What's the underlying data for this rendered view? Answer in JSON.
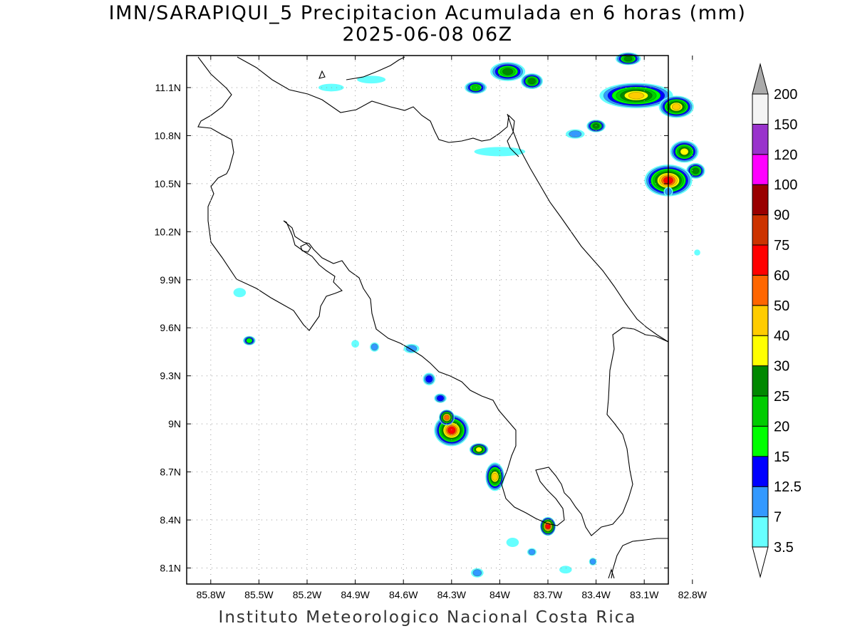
{
  "header": {
    "title_line1": "IMN/SARAPIQUI_5 Precipitacion Acumulada en 6 horas (mm)",
    "title_line2": "2025-06-08 06Z"
  },
  "footer": {
    "credit": "Instituto Meteorologico Nacional Costa Rica"
  },
  "map": {
    "lon_range": [
      -85.95,
      -82.95
    ],
    "lat_range": [
      8.0,
      11.3
    ],
    "x_ticks": [
      {
        "value": -85.8,
        "label": "85.8W"
      },
      {
        "value": -85.5,
        "label": "85.5W"
      },
      {
        "value": -85.2,
        "label": "85.2W"
      },
      {
        "value": -84.9,
        "label": "84.9W"
      },
      {
        "value": -84.6,
        "label": "84.6W"
      },
      {
        "value": -84.3,
        "label": "84.3W"
      },
      {
        "value": -84.0,
        "label": "84W"
      },
      {
        "value": -83.7,
        "label": "83.7W"
      },
      {
        "value": -83.4,
        "label": "83.4W"
      },
      {
        "value": -83.1,
        "label": "83.1W"
      },
      {
        "value": -82.8,
        "label": "82.8W"
      }
    ],
    "y_ticks": [
      {
        "value": 11.1,
        "label": "11.1N"
      },
      {
        "value": 10.8,
        "label": "10.8N"
      },
      {
        "value": 10.5,
        "label": "10.5N"
      },
      {
        "value": 10.2,
        "label": "10.2N"
      },
      {
        "value": 9.9,
        "label": "9.9N"
      },
      {
        "value": 9.6,
        "label": "9.6N"
      },
      {
        "value": 9.3,
        "label": "9.3N"
      },
      {
        "value": 9.0,
        "label": "9N"
      },
      {
        "value": 8.7,
        "label": "8.7N"
      },
      {
        "value": 8.4,
        "label": "8.4N"
      },
      {
        "value": 8.1,
        "label": "8.1N"
      }
    ],
    "grid": "dotted"
  },
  "legend": {
    "labels": [
      "200",
      "150",
      "120",
      "100",
      "90",
      "75",
      "60",
      "50",
      "40",
      "30",
      "25",
      "20",
      "15",
      "12.5",
      "7",
      "3.5"
    ],
    "colors_bottom_to_top": [
      "#66ffff",
      "#3399ff",
      "#0000ff",
      "#00ff00",
      "#00cc00",
      "#008800",
      "#ffff00",
      "#ffcc00",
      "#ff6600",
      "#ff0000",
      "#cc3300",
      "#990000",
      "#ff00ff",
      "#9933cc",
      "#f4f4f4"
    ],
    "top_arrow_color": "#aaaaaa",
    "bottom_arrow_color": "#ffffff"
  },
  "precip_cells": [
    {
      "lon": -83.15,
      "lat": 11.05,
      "rx": 0.22,
      "ry": 0.07,
      "max": 45
    },
    {
      "lon": -82.9,
      "lat": 10.98,
      "rx": 0.1,
      "ry": 0.06,
      "max": 40
    },
    {
      "lon": -83.4,
      "lat": 10.86,
      "rx": 0.05,
      "ry": 0.03,
      "max": 25
    },
    {
      "lon": -82.85,
      "lat": 10.7,
      "rx": 0.08,
      "ry": 0.06,
      "max": 35
    },
    {
      "lon": -82.78,
      "lat": 10.58,
      "rx": 0.05,
      "ry": 0.04,
      "max": 25
    },
    {
      "lon": -82.95,
      "lat": 10.52,
      "rx": 0.14,
      "ry": 0.09,
      "max": 70
    },
    {
      "lon": -83.95,
      "lat": 11.2,
      "rx": 0.1,
      "ry": 0.05,
      "max": 25
    },
    {
      "lon": -83.8,
      "lat": 11.14,
      "rx": 0.06,
      "ry": 0.04,
      "max": 25
    },
    {
      "lon": -84.15,
      "lat": 11.1,
      "rx": 0.06,
      "ry": 0.03,
      "max": 20
    },
    {
      "lon": -83.2,
      "lat": 11.28,
      "rx": 0.07,
      "ry": 0.03,
      "max": 25
    },
    {
      "lon": -84.3,
      "lat": 8.96,
      "rx": 0.1,
      "ry": 0.09,
      "max": 70
    },
    {
      "lon": -84.33,
      "lat": 9.04,
      "rx": 0.04,
      "ry": 0.04,
      "max": 50
    },
    {
      "lon": -84.13,
      "lat": 8.84,
      "rx": 0.05,
      "ry": 0.03,
      "max": 35
    },
    {
      "lon": -84.03,
      "lat": 8.67,
      "rx": 0.05,
      "ry": 0.08,
      "max": 40
    },
    {
      "lon": -83.7,
      "lat": 8.36,
      "rx": 0.04,
      "ry": 0.05,
      "max": 60
    },
    {
      "lon": -84.44,
      "lat": 9.28,
      "rx": 0.03,
      "ry": 0.03,
      "max": 12.5
    },
    {
      "lon": -84.37,
      "lat": 9.16,
      "rx": 0.03,
      "ry": 0.02,
      "max": 12.5
    },
    {
      "lon": -85.56,
      "lat": 9.52,
      "rx": 0.03,
      "ry": 0.02,
      "max": 15
    },
    {
      "lon": -84.55,
      "lat": 9.47,
      "rx": 0.04,
      "ry": 0.02,
      "max": 7
    },
    {
      "lon": -84.78,
      "lat": 9.48,
      "rx": 0.02,
      "ry": 0.02,
      "max": 7
    },
    {
      "lon": -85.62,
      "lat": 9.82,
      "rx": 0.03,
      "ry": 0.02,
      "max": 3.5
    },
    {
      "lon": -84.9,
      "lat": 9.5,
      "rx": 0.015,
      "ry": 0.015,
      "max": 3.5
    },
    {
      "lon": -84.0,
      "lat": 10.7,
      "rx": 0.15,
      "ry": 0.02,
      "max": 3.5
    },
    {
      "lon": -84.8,
      "lat": 11.15,
      "rx": 0.08,
      "ry": 0.015,
      "max": 3.5
    },
    {
      "lon": -85.05,
      "lat": 11.1,
      "rx": 0.07,
      "ry": 0.015,
      "max": 3.5
    },
    {
      "lon": -83.53,
      "lat": 10.81,
      "rx": 0.05,
      "ry": 0.02,
      "max": 7
    },
    {
      "lon": -83.92,
      "lat": 8.26,
      "rx": 0.03,
      "ry": 0.02,
      "max": 3.5
    },
    {
      "lon": -83.8,
      "lat": 8.2,
      "rx": 0.02,
      "ry": 0.015,
      "max": 7
    },
    {
      "lon": -83.59,
      "lat": 8.09,
      "rx": 0.03,
      "ry": 0.015,
      "max": 3.5
    },
    {
      "lon": -83.42,
      "lat": 8.14,
      "rx": 0.015,
      "ry": 0.015,
      "max": 7
    },
    {
      "lon": -84.14,
      "lat": 8.07,
      "rx": 0.03,
      "ry": 0.02,
      "max": 7
    },
    {
      "lon": -82.95,
      "lat": 10.45,
      "rx": 0.02,
      "ry": 0.02,
      "max": 7
    },
    {
      "lon": -82.77,
      "lat": 10.07,
      "rx": 0.01,
      "ry": 0.01,
      "max": 3.5
    }
  ]
}
